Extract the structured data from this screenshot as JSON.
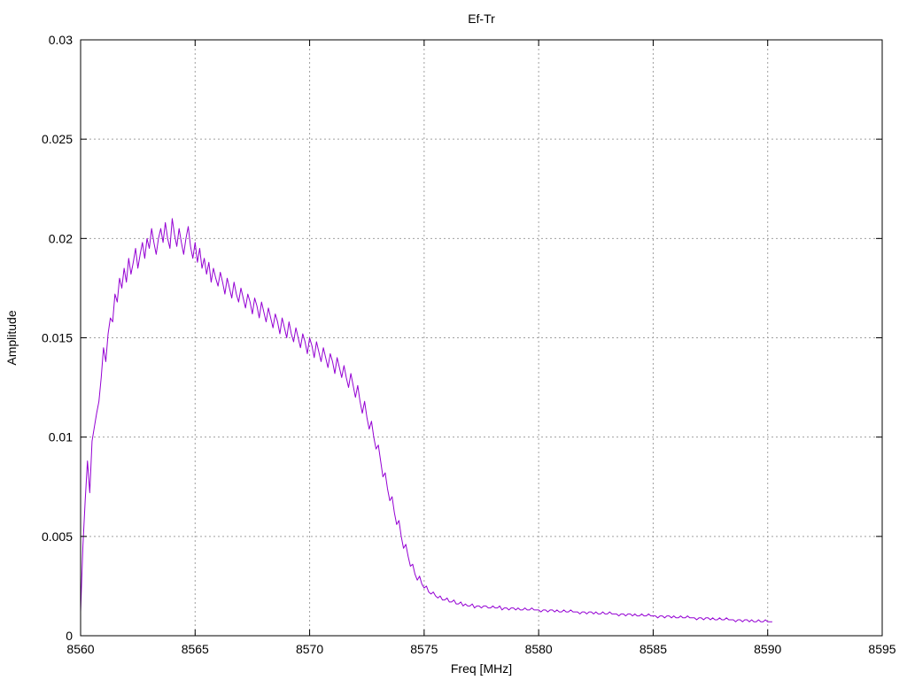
{
  "chart_data": {
    "type": "line",
    "title": "Ef-Tr",
    "xlabel": "Freq [MHz]",
    "ylabel": "Amplitude",
    "xlim": [
      8560,
      8595
    ],
    "ylim": [
      0,
      0.03
    ],
    "x_ticks": [
      8560,
      8565,
      8570,
      8575,
      8580,
      8585,
      8590,
      8595
    ],
    "y_ticks": [
      0,
      0.005,
      0.01,
      0.015,
      0.02,
      0.025,
      0.03
    ],
    "x_tick_labels": [
      "8560",
      "8565",
      "8570",
      "8575",
      "8580",
      "8585",
      "8590",
      "8595"
    ],
    "y_tick_labels": [
      "0",
      "0.005",
      "0.01",
      "0.015",
      "0.02",
      "0.025",
      "0.03"
    ],
    "grid": true,
    "series": [
      {
        "color": "#9400d3",
        "x_start": 8560.0,
        "x_step": 0.1,
        "values": [
          0.0012,
          0.0045,
          0.0068,
          0.0088,
          0.0072,
          0.0098,
          0.0105,
          0.0112,
          0.0118,
          0.013,
          0.0145,
          0.0138,
          0.0152,
          0.016,
          0.0158,
          0.0172,
          0.0168,
          0.018,
          0.0175,
          0.0185,
          0.0178,
          0.019,
          0.0182,
          0.0188,
          0.0195,
          0.0185,
          0.0192,
          0.0198,
          0.019,
          0.02,
          0.0195,
          0.0205,
          0.0198,
          0.0192,
          0.02,
          0.0205,
          0.0198,
          0.0208,
          0.02,
          0.0195,
          0.021,
          0.0202,
          0.0196,
          0.0205,
          0.0198,
          0.0192,
          0.02,
          0.0206,
          0.0196,
          0.019,
          0.0198,
          0.0188,
          0.0195,
          0.0185,
          0.019,
          0.0182,
          0.0188,
          0.0178,
          0.0185,
          0.018,
          0.0176,
          0.0183,
          0.0178,
          0.0172,
          0.018,
          0.0175,
          0.017,
          0.0178,
          0.0172,
          0.0168,
          0.0175,
          0.017,
          0.0165,
          0.0172,
          0.0168,
          0.0162,
          0.017,
          0.0166,
          0.016,
          0.0168,
          0.0163,
          0.0158,
          0.0165,
          0.016,
          0.0155,
          0.0162,
          0.0158,
          0.0152,
          0.016,
          0.0155,
          0.015,
          0.0158,
          0.0152,
          0.0148,
          0.0155,
          0.015,
          0.0145,
          0.0152,
          0.0148,
          0.0142,
          0.015,
          0.0146,
          0.014,
          0.0148,
          0.0143,
          0.0138,
          0.0145,
          0.014,
          0.0135,
          0.0142,
          0.0138,
          0.0132,
          0.014,
          0.0135,
          0.013,
          0.0136,
          0.013,
          0.0125,
          0.0132,
          0.0126,
          0.012,
          0.0126,
          0.0118,
          0.0112,
          0.0118,
          0.011,
          0.0104,
          0.0108,
          0.01,
          0.0094,
          0.0096,
          0.0088,
          0.008,
          0.0082,
          0.0074,
          0.0068,
          0.007,
          0.0062,
          0.0056,
          0.0058,
          0.005,
          0.0044,
          0.0046,
          0.004,
          0.0035,
          0.0036,
          0.0031,
          0.0028,
          0.003,
          0.0026,
          0.0024,
          0.0025,
          0.0022,
          0.0021,
          0.0022,
          0.002,
          0.0019,
          0.002,
          0.0018,
          0.0018,
          0.0019,
          0.0017,
          0.0017,
          0.0018,
          0.0016,
          0.0016,
          0.0017,
          0.0015,
          0.0016,
          0.0015,
          0.0015,
          0.0016,
          0.0014,
          0.0015,
          0.0015,
          0.0014,
          0.0015,
          0.0015,
          0.0014,
          0.0014,
          0.0015,
          0.0014,
          0.0014,
          0.0015,
          0.0013,
          0.0014,
          0.0014,
          0.0013,
          0.0014,
          0.0014,
          0.0013,
          0.0014,
          0.0013,
          0.0013,
          0.0014,
          0.0013,
          0.0013,
          0.0014,
          0.0013,
          0.0013,
          0.0013,
          0.0012,
          0.0013,
          0.0013,
          0.0012,
          0.0013,
          0.0013,
          0.0012,
          0.0013,
          0.0012,
          0.0012,
          0.0013,
          0.0012,
          0.0012,
          0.0013,
          0.0012,
          0.0012,
          0.0012,
          0.0011,
          0.0012,
          0.0012,
          0.0011,
          0.0012,
          0.0012,
          0.0011,
          0.0012,
          0.0011,
          0.0011,
          0.0012,
          0.0011,
          0.0011,
          0.0012,
          0.0011,
          0.0011,
          0.0011,
          0.001,
          0.0011,
          0.0011,
          0.001,
          0.0011,
          0.0011,
          0.001,
          0.0011,
          0.001,
          0.001,
          0.0011,
          0.001,
          0.001,
          0.0011,
          0.001,
          0.001,
          0.001,
          0.0009,
          0.001,
          0.001,
          0.0009,
          0.001,
          0.001,
          0.0009,
          0.001,
          0.0009,
          0.0009,
          0.001,
          0.0009,
          0.0009,
          0.001,
          0.0009,
          0.0009,
          0.0009,
          0.0008,
          0.0009,
          0.0009,
          0.0008,
          0.0009,
          0.0009,
          0.0008,
          0.0009,
          0.0008,
          0.0008,
          0.0009,
          0.0008,
          0.0008,
          0.0009,
          0.0008,
          0.0008,
          0.0008,
          0.0007,
          0.0008,
          0.0008,
          0.0007,
          0.0008,
          0.0008,
          0.0007,
          0.0008,
          0.0007,
          0.0007,
          0.0008,
          0.0007,
          0.0007,
          0.0008,
          0.0007,
          0.0007,
          0.0007
        ]
      }
    ]
  }
}
